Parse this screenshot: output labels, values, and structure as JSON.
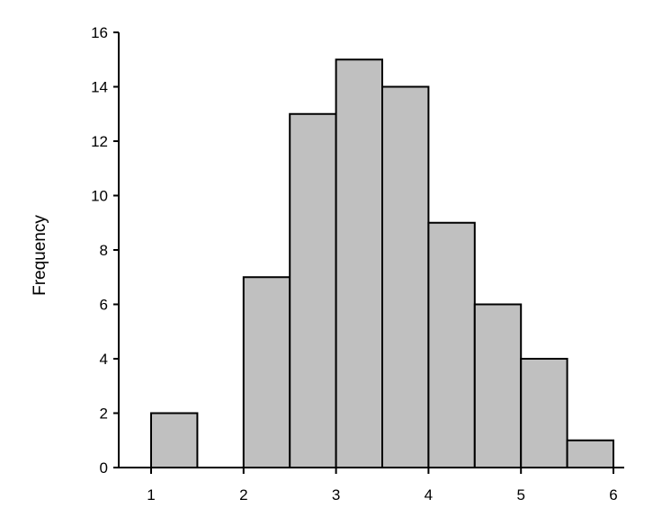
{
  "chart_data": {
    "type": "bar",
    "subtype": "histogram",
    "title": "",
    "xlabel": "",
    "ylabel": "Frequency",
    "xlim": [
      1,
      6
    ],
    "ylim": [
      0,
      16
    ],
    "x_ticks": [
      "1",
      "2",
      "3",
      "4",
      "5",
      "6"
    ],
    "y_ticks": [
      "0",
      "2",
      "4",
      "6",
      "8",
      "10",
      "12",
      "14",
      "16"
    ],
    "bins": [
      {
        "start": 1.0,
        "end": 1.5,
        "value": 2
      },
      {
        "start": 2.0,
        "end": 2.5,
        "value": 7
      },
      {
        "start": 2.5,
        "end": 3.0,
        "value": 13
      },
      {
        "start": 3.0,
        "end": 3.5,
        "value": 15
      },
      {
        "start": 3.5,
        "end": 4.0,
        "value": 14
      },
      {
        "start": 4.0,
        "end": 4.5,
        "value": 9
      },
      {
        "start": 4.5,
        "end": 5.0,
        "value": 6
      },
      {
        "start": 5.0,
        "end": 5.5,
        "value": 4
      },
      {
        "start": 5.5,
        "end": 6.0,
        "value": 1
      }
    ],
    "bar_color": "#c0c0c0",
    "bar_edge_color": "#000000",
    "grid": false,
    "legend": "none"
  }
}
